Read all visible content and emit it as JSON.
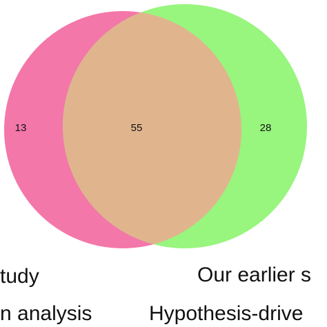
{
  "diagram": {
    "type": "venn",
    "colors": {
      "left_set": "#f477a9",
      "right_set": "#98f57e",
      "overlap": "#e0b58e",
      "text": "#111111",
      "background": "#ffffff"
    },
    "counts": {
      "left_only": "13",
      "both": "55",
      "right_only": "28"
    },
    "labels": {
      "left_line1": "tudy",
      "left_line2": "n analysis",
      "right_line1": "Our earlier s",
      "right_line2": "Hypothesis-drive"
    }
  }
}
